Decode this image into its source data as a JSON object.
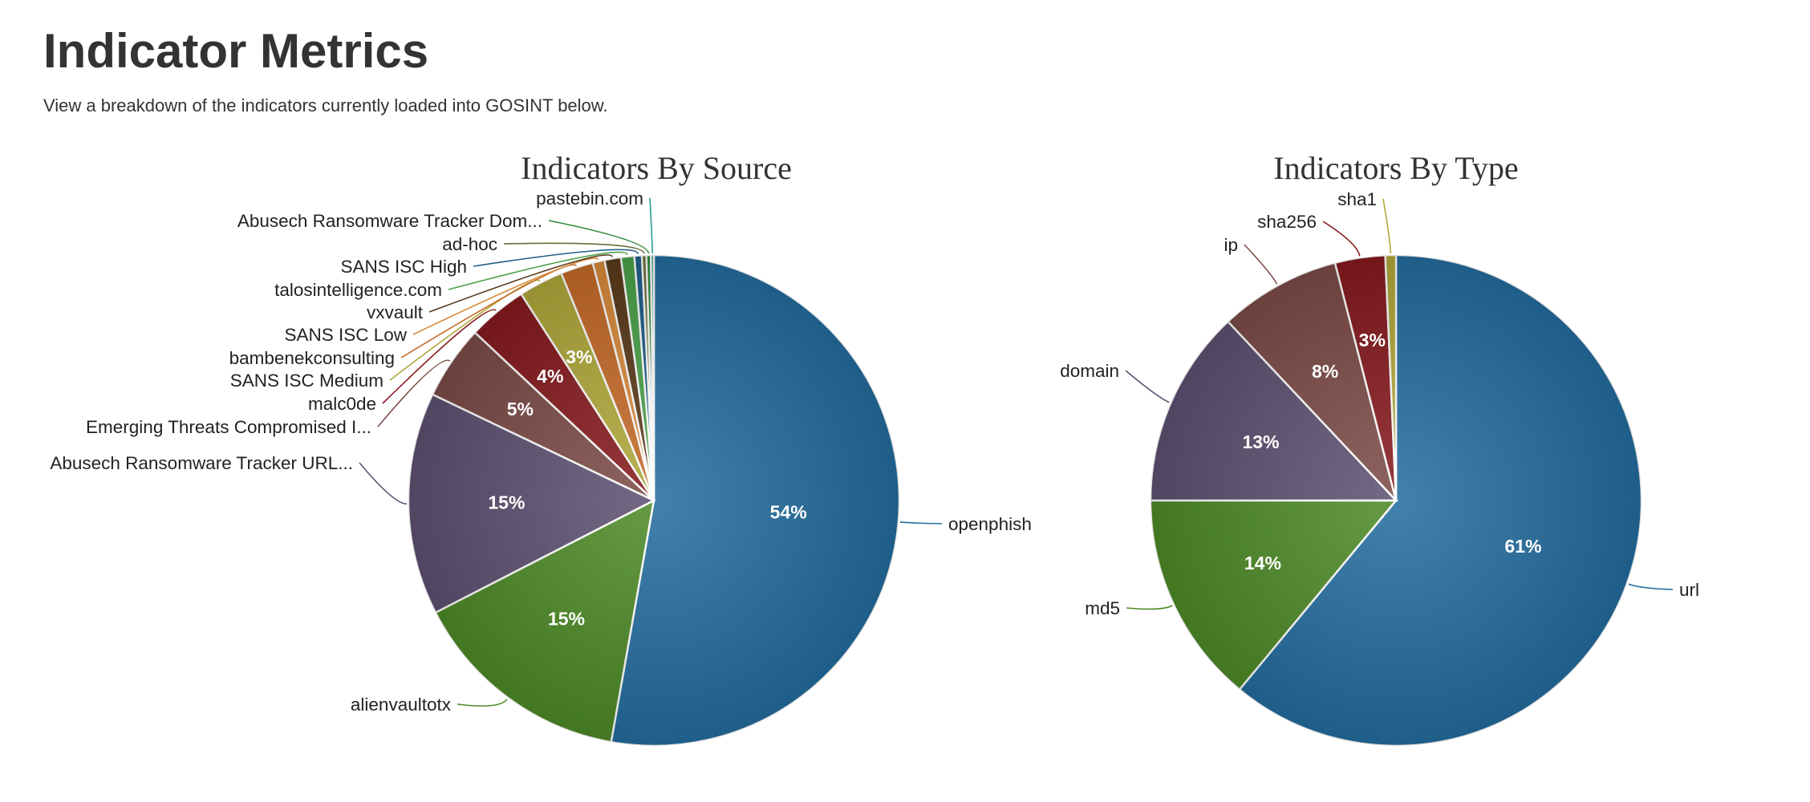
{
  "header": {
    "title": "Indicator Metrics",
    "subtitle": "View a breakdown of the indicators currently loaded into GOSINT below."
  },
  "chart_data": [
    {
      "type": "pie",
      "title": "Indicators By Source",
      "slices": [
        {
          "label": "openphish",
          "value": 54,
          "color": "#236d9e",
          "pct_label": "54%"
        },
        {
          "label": "alienvaultotx",
          "value": 15,
          "color": "#4d8a26",
          "pct_label": "15%"
        },
        {
          "label": "Abusech Ransomware Tracker URL...",
          "value": 15,
          "color": "#5e5171",
          "pct_label": "15%"
        },
        {
          "label": "Emerging Threats Compromised I...",
          "value": 5,
          "color": "#7c4b47",
          "pct_label": "5%"
        },
        {
          "label": "malc0de",
          "value": 4,
          "color": "#861a1e",
          "pct_label": "4%"
        },
        {
          "label": "SANS ISC Medium",
          "value": 3,
          "color": "#b0a83a",
          "pct_label": "3%"
        },
        {
          "label": "bambenekconsulting",
          "value": 2.2,
          "color": "#c46a28",
          "pct_label": ""
        },
        {
          "label": "SANS ISC Low",
          "value": 0.8,
          "color": "#d98a3a",
          "pct_label": ""
        },
        {
          "label": "vxvault",
          "value": 1.1,
          "color": "#5a3a1a",
          "pct_label": ""
        },
        {
          "label": "talosintelligence.com",
          "value": 0.9,
          "color": "#4aa14a",
          "pct_label": ""
        },
        {
          "label": "SANS ISC High",
          "value": 0.5,
          "color": "#1f5f8a",
          "pct_label": ""
        },
        {
          "label": "ad-hoc",
          "value": 0.3,
          "color": "#6b6b3a",
          "pct_label": ""
        },
        {
          "label": "Abusech Ransomware Tracker Dom...",
          "value": 0.3,
          "color": "#2e8b3a",
          "pct_label": ""
        },
        {
          "label": "pastebin.com",
          "value": 0.2,
          "color": "#2a9d8f",
          "pct_label": ""
        }
      ]
    },
    {
      "type": "pie",
      "title": "Indicators By Type",
      "slices": [
        {
          "label": "url",
          "value": 61,
          "color": "#236d9e",
          "pct_label": "61%"
        },
        {
          "label": "md5",
          "value": 14,
          "color": "#4d8a26",
          "pct_label": "14%"
        },
        {
          "label": "domain",
          "value": 13,
          "color": "#5e5171",
          "pct_label": "13%"
        },
        {
          "label": "ip",
          "value": 8,
          "color": "#7c4b47",
          "pct_label": "8%"
        },
        {
          "label": "sha256",
          "value": 3.3,
          "color": "#861a1e",
          "pct_label": "3%"
        },
        {
          "label": "sha1",
          "value": 0.7,
          "color": "#b0a83a",
          "pct_label": ""
        }
      ]
    }
  ]
}
